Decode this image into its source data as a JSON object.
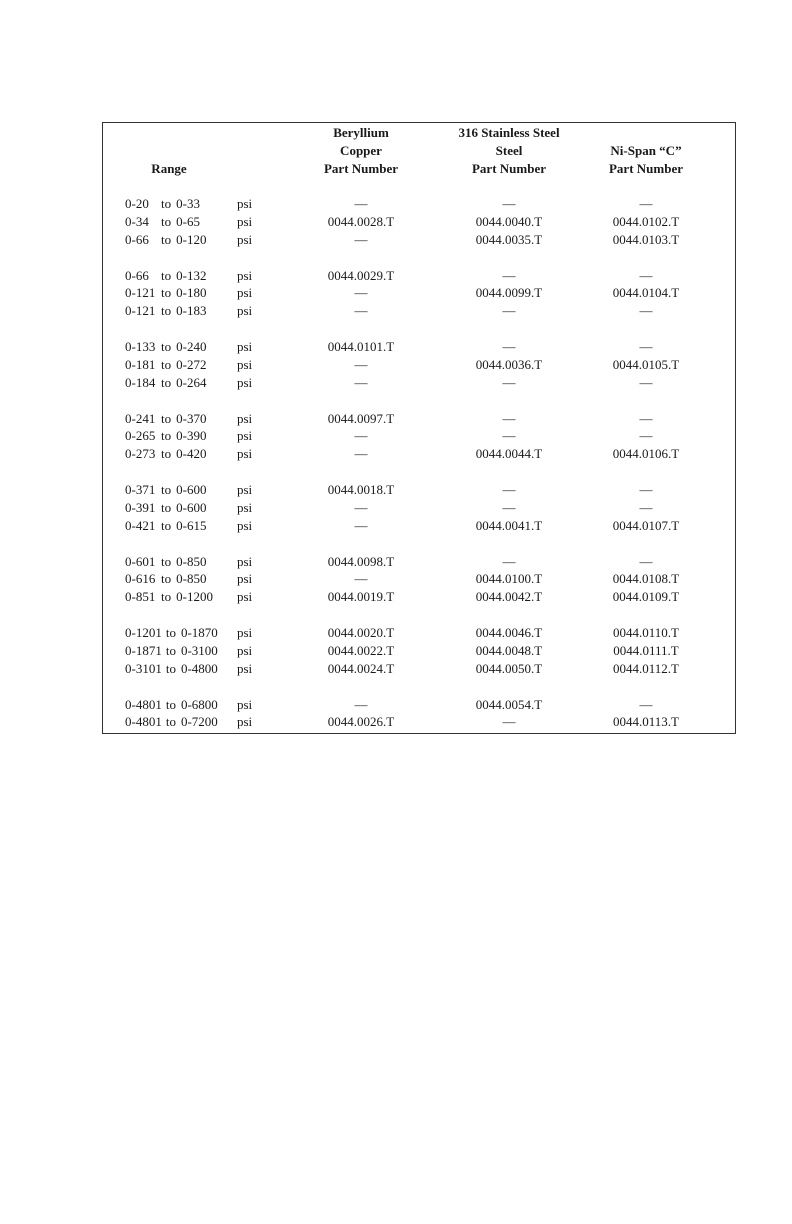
{
  "headers": {
    "range": "Range",
    "copper": [
      "Beryllium",
      "Copper",
      "Part Number"
    ],
    "steel": [
      "316 Stainless Steel",
      "Steel",
      "Part Number"
    ],
    "nispan": [
      "Ni-Span “C”",
      "Part Number"
    ]
  },
  "to_word": "to",
  "unit": "psi",
  "groups": [
    [
      {
        "from": "0-20",
        "to": "0-33",
        "copper": "—",
        "steel": "—",
        "nispan": "—"
      },
      {
        "from": "0-34",
        "to": "0-65",
        "copper": "0044.0028.T",
        "steel": "0044.0040.T",
        "nispan": "0044.0102.T"
      },
      {
        "from": "0-66",
        "to": "0-120",
        "copper": "—",
        "steel": "0044.0035.T",
        "nispan": "0044.0103.T"
      }
    ],
    [
      {
        "from": "0-66",
        "to": "0-132",
        "copper": "0044.0029.T",
        "steel": "—",
        "nispan": "—"
      },
      {
        "from": "0-121",
        "to": "0-180",
        "copper": "—",
        "steel": "0044.0099.T",
        "nispan": "0044.0104.T"
      },
      {
        "from": "0-121",
        "to": "0-183",
        "copper": "—",
        "steel": "—",
        "nispan": "—"
      }
    ],
    [
      {
        "from": "0-133",
        "to": "0-240",
        "copper": "0044.0101.T",
        "steel": "—",
        "nispan": "—"
      },
      {
        "from": "0-181",
        "to": "0-272",
        "copper": "—",
        "steel": "0044.0036.T",
        "nispan": "0044.0105.T"
      },
      {
        "from": "0-184",
        "to": "0-264",
        "copper": "—",
        "steel": "—",
        "nispan": "—"
      }
    ],
    [
      {
        "from": "0-241",
        "to": "0-370",
        "copper": "0044.0097.T",
        "steel": "—",
        "nispan": "—"
      },
      {
        "from": "0-265",
        "to": "0-390",
        "copper": "—",
        "steel": "—",
        "nispan": "—"
      },
      {
        "from": "0-273",
        "to": "0-420",
        "copper": "—",
        "steel": "0044.0044.T",
        "nispan": "0044.0106.T"
      }
    ],
    [
      {
        "from": "0-371",
        "to": "0-600",
        "copper": "0044.0018.T",
        "steel": "—",
        "nispan": "—"
      },
      {
        "from": "0-391",
        "to": "0-600",
        "copper": "—",
        "steel": "—",
        "nispan": "—"
      },
      {
        "from": "0-421",
        "to": "0-615",
        "copper": "—",
        "steel": "0044.0041.T",
        "nispan": "0044.0107.T"
      }
    ],
    [
      {
        "from": "0-601",
        "to": "0-850",
        "copper": "0044.0098.T",
        "steel": "—",
        "nispan": "—"
      },
      {
        "from": "0-616",
        "to": "0-850",
        "copper": "—",
        "steel": "0044.0100.T",
        "nispan": "0044.0108.T"
      },
      {
        "from": "0-851",
        "to": "0-1200",
        "copper": "0044.0019.T",
        "steel": "0044.0042.T",
        "nispan": "0044.0109.T"
      }
    ],
    [
      {
        "from": "0-1201",
        "to": "0-1870",
        "copper": "0044.0020.T",
        "steel": "0044.0046.T",
        "nispan": "0044.0110.T"
      },
      {
        "from": "0-1871",
        "to": "0-3100",
        "copper": "0044.0022.T",
        "steel": "0044.0048.T",
        "nispan": "0044.0111.T"
      },
      {
        "from": "0-3101",
        "to": "0-4800",
        "copper": "0044.0024.T",
        "steel": "0044.0050.T",
        "nispan": "0044.0112.T"
      }
    ],
    [
      {
        "from": "0-4801",
        "to": "0-6800",
        "copper": "—",
        "steel": "0044.0054.T",
        "nispan": "—"
      },
      {
        "from": "0-4801",
        "to": "0-7200",
        "copper": "0044.0026.T",
        "steel": "—",
        "nispan": "0044.0113.T"
      }
    ]
  ]
}
